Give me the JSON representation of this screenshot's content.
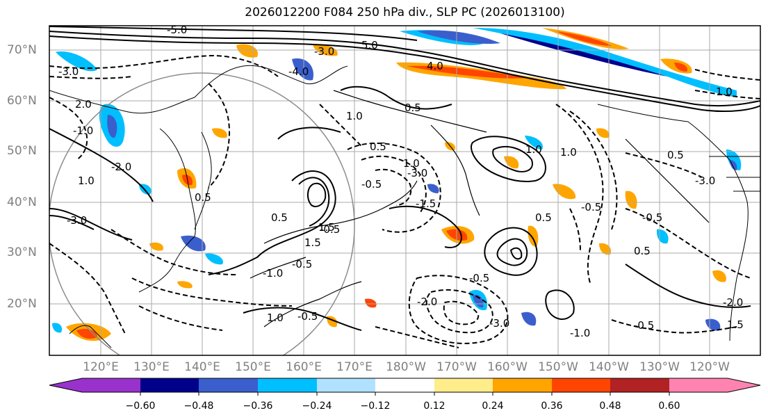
{
  "title": "2026012200 F084 250 hPa div., SLP PC (2026013100)",
  "map": {
    "lat_labels": [
      "70°N",
      "60°N",
      "50°N",
      "40°N",
      "30°N",
      "20°N"
    ],
    "lon_labels": [
      "120°E",
      "130°E",
      "140°E",
      "150°E",
      "160°E",
      "170°E",
      "180°W",
      "170°W",
      "160°W",
      "150°W",
      "140°W",
      "130°W",
      "120°W"
    ],
    "contour_labels": [
      "-5.0",
      "-4.0",
      "-3.0",
      "-3.0",
      "5.0",
      "4.0",
      "1.0",
      "0.5",
      "-1.0",
      "1.0",
      "-3.0",
      "1.0",
      "0.5",
      "-2.0",
      "2.0",
      "0.5",
      "-0.5",
      "-1.0",
      "-0.5",
      "1.0",
      "1.5",
      "-0.5",
      "-0.5",
      "1.5",
      "-1.5",
      "-3.0",
      "1.0",
      "0.5",
      "1.0",
      "0.5",
      "-0.5",
      "1.0",
      "-0.5",
      "-2.0",
      "-3.0",
      "0.5",
      "0.5",
      "-0.5",
      "-1.0",
      "-0.5",
      "1.5",
      "-3.0",
      "-2.0"
    ]
  },
  "colorbar": {
    "tick_labels": [
      "−0.60",
      "−0.48",
      "−0.36",
      "−0.24",
      "−0.12",
      "0.12",
      "0.24",
      "0.36",
      "0.48",
      "0.60"
    ],
    "colors": [
      "#9932cc",
      "#00008b",
      "#3a5fcd",
      "#00bfff",
      "#b0e2ff",
      "#ffffff",
      "#ffec8b",
      "#ffa500",
      "#ff4500",
      "#b22222",
      "#ff83b0",
      "#ff83b0"
    ]
  },
  "colors": {
    "positive_orange": "#ffa500",
    "positive_red": "#ff4500",
    "negative_lightblue": "#00bfff",
    "negative_blue": "#3a5fcd",
    "grid": "#aaaaaa"
  }
}
